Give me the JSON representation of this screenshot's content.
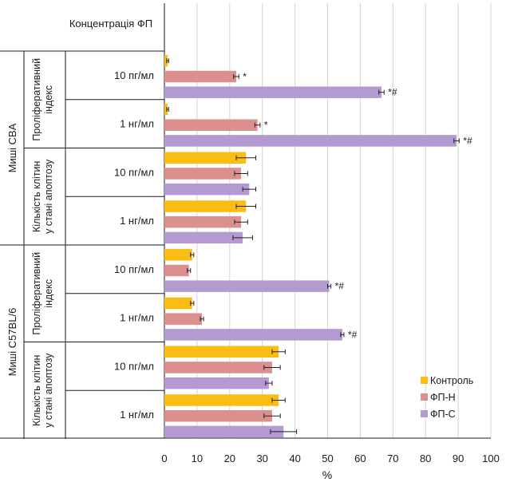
{
  "chart_data": {
    "type": "bar",
    "orientation": "horizontal",
    "header": "Концентрація ФП",
    "xlabel": "%",
    "xlim": [
      0,
      100
    ],
    "xticks": [
      0,
      10,
      20,
      30,
      40,
      50,
      60,
      70,
      80,
      90,
      100
    ],
    "grid": true,
    "legend_position": "bottom-right",
    "series": [
      {
        "name": "Контроль",
        "color": "#fbbd13"
      },
      {
        "name": "ФП-Н",
        "color": "#dc8f8f"
      },
      {
        "name": "ФП-С",
        "color": "#b39ad0"
      }
    ],
    "strains": [
      {
        "label": "Миші CBA",
        "groups": [
          {
            "label_lines": [
              "Проліферативний",
              "індекс"
            ],
            "rows": [
              {
                "label": "10 пг/мл",
                "values": [
                  1,
                  22,
                  66.5
                ],
                "errors": [
                  0.3,
                  0.8,
                  0.8
                ],
                "annotations": [
                  "",
                  "*",
                  "*#"
                ]
              },
              {
                "label": "1 нг/мл",
                "values": [
                  1,
                  28.5,
                  89.5
                ],
                "errors": [
                  0.3,
                  0.8,
                  0.8
                ],
                "annotations": [
                  "",
                  "*",
                  "*#"
                ]
              }
            ]
          },
          {
            "label_lines": [
              "Кількість клітин",
              "у стані апоптозу"
            ],
            "rows": [
              {
                "label": "10 пг/мл",
                "values": [
                  25,
                  23.5,
                  26
                ],
                "errors": [
                  3,
                  2,
                  2
                ],
                "annotations": [
                  "",
                  "",
                  ""
                ]
              },
              {
                "label": "1 нг/мл",
                "values": [
                  25,
                  23.5,
                  24
                ],
                "errors": [
                  3,
                  2,
                  3
                ],
                "annotations": [
                  "",
                  "",
                  ""
                ]
              }
            ]
          }
        ]
      },
      {
        "label": "Миші C57BL/6",
        "groups": [
          {
            "label_lines": [
              "Проліферативний",
              "індекс"
            ],
            "rows": [
              {
                "label": "10 пг/мл",
                "values": [
                  8.5,
                  7.5,
                  50.5
                ],
                "errors": [
                  0.5,
                  0.5,
                  0.5
                ],
                "annotations": [
                  "",
                  "",
                  "*#"
                ]
              },
              {
                "label": "1 нг/мл",
                "values": [
                  8.5,
                  11.5,
                  54.5
                ],
                "errors": [
                  0.5,
                  0.5,
                  0.5
                ],
                "annotations": [
                  "",
                  "",
                  "*#"
                ]
              }
            ]
          },
          {
            "label_lines": [
              "Кількість клітин",
              "у стані апоптозу"
            ],
            "rows": [
              {
                "label": "10 пг/мл",
                "values": [
                  35,
                  33,
                  32
                ],
                "errors": [
                  2,
                  2.5,
                  1
                ],
                "annotations": [
                  "",
                  "",
                  ""
                ]
              },
              {
                "label": "1 нг/мл",
                "values": [
                  35,
                  33,
                  36.5
                ],
                "errors": [
                  2,
                  2.5,
                  4
                ],
                "annotations": [
                  "",
                  "",
                  ""
                ]
              }
            ]
          }
        ]
      }
    ]
  }
}
